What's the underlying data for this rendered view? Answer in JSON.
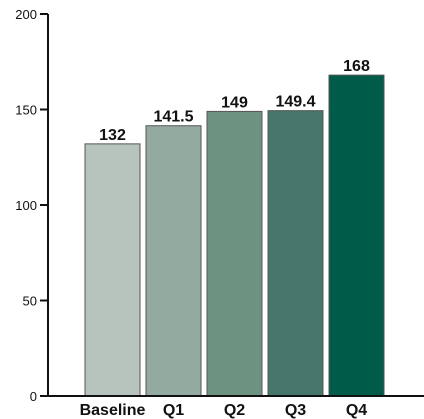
{
  "chart_data": {
    "type": "bar",
    "title": "",
    "categories": [
      "Baseline",
      "Q1",
      "Q2",
      "Q3",
      "Q4"
    ],
    "values": [
      132,
      141.5,
      149,
      149.4,
      168
    ],
    "value_labels": [
      "132",
      "141.5",
      "149",
      "149.4",
      "168"
    ],
    "ylim": [
      0,
      200
    ],
    "yticks": [
      0,
      50,
      100,
      150,
      200
    ],
    "ytick_labels": [
      "0",
      "50",
      "100",
      "150",
      "200"
    ],
    "grid": false,
    "legend": "none",
    "colors": [
      "#b7c4bd",
      "#93aaa0",
      "#6e9282",
      "#47776a",
      "#005c48"
    ],
    "bar_outline": "#555555",
    "axis_color": "#111111"
  }
}
